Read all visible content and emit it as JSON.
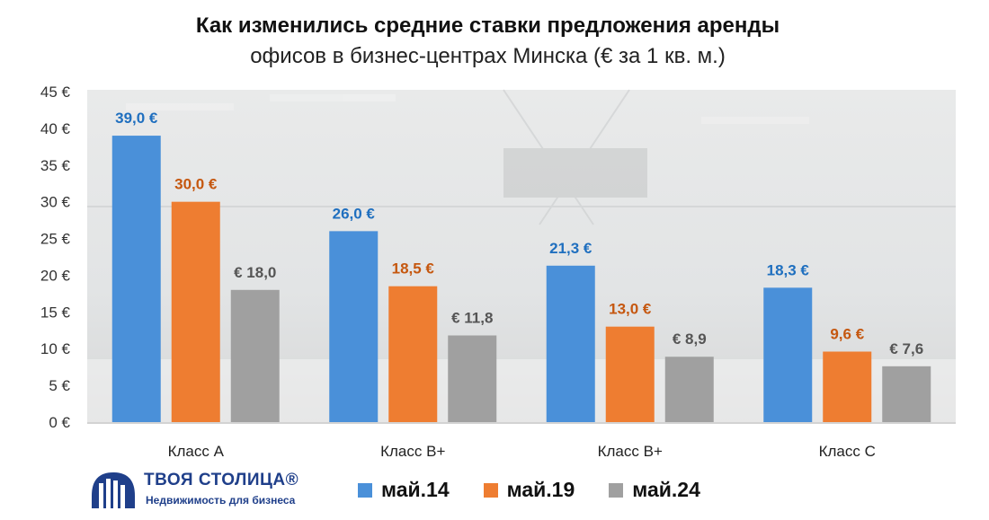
{
  "chart_data": {
    "type": "bar",
    "title": "Как изменились средние ставки предложения аренды",
    "subtitle": "офисов в бизнес-центрах Минска (€ за 1 кв. м.)",
    "categories": [
      "Класс А",
      "Класс В+",
      "Класс В+",
      "Класс С"
    ],
    "series": [
      {
        "name": "май.14",
        "values": [
          39.0,
          26.0,
          21.3,
          18.3
        ],
        "labels": [
          "39,0 €",
          "26,0 €",
          "21,3 €",
          "18,3 €"
        ],
        "color": "#4a90d9",
        "label_color": "#1f6fbf"
      },
      {
        "name": "май.19",
        "values": [
          30.0,
          18.5,
          13.0,
          9.6
        ],
        "labels": [
          "30,0 €",
          "18,5 €",
          "13,0 €",
          "9,6 €"
        ],
        "color": "#ee7d31",
        "label_color": "#c5570f"
      },
      {
        "name": "май.24",
        "values": [
          18.0,
          11.8,
          8.9,
          7.6
        ],
        "labels": [
          "€  18,0",
          "€  11,8",
          "€  8,9",
          "€  7,6"
        ],
        "color": "#a0a0a0",
        "label_color": "#555555"
      }
    ],
    "y_ticks": [
      "0 €",
      "5 €",
      "10 €",
      "15 €",
      "20 €",
      "25 €",
      "30 €",
      "35 €",
      "40 €",
      "45 €"
    ],
    "ylim": [
      0,
      45
    ],
    "grid": false,
    "legend_position": "bottom"
  },
  "logo": {
    "name": "ТВОЯ СТОЛИЦА®",
    "tagline": "Недвижимость для бизнеса"
  }
}
